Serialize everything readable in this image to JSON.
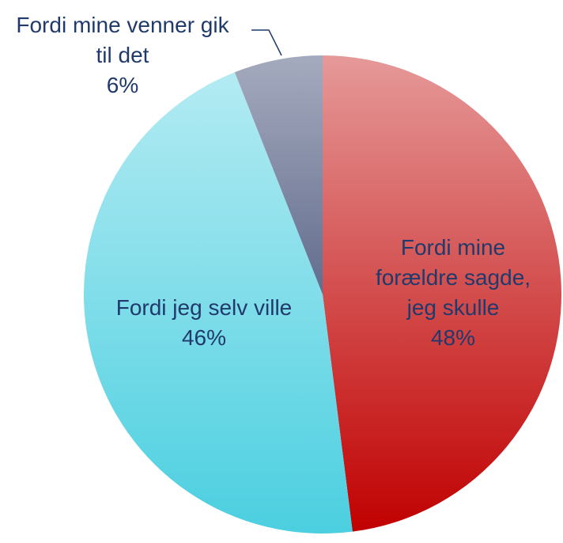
{
  "chart_data": {
    "type": "pie",
    "categories": [
      "Fordi mine forældre sagde, jeg skulle",
      "Fordi jeg selv ville",
      "Fordi mine venner gik til det"
    ],
    "values": [
      48,
      46,
      6
    ],
    "value_labels": [
      "48%",
      "46%",
      "6%"
    ],
    "colors": [
      "#c00000",
      "#4bcfe0",
      "#1f2d5c"
    ]
  }
}
